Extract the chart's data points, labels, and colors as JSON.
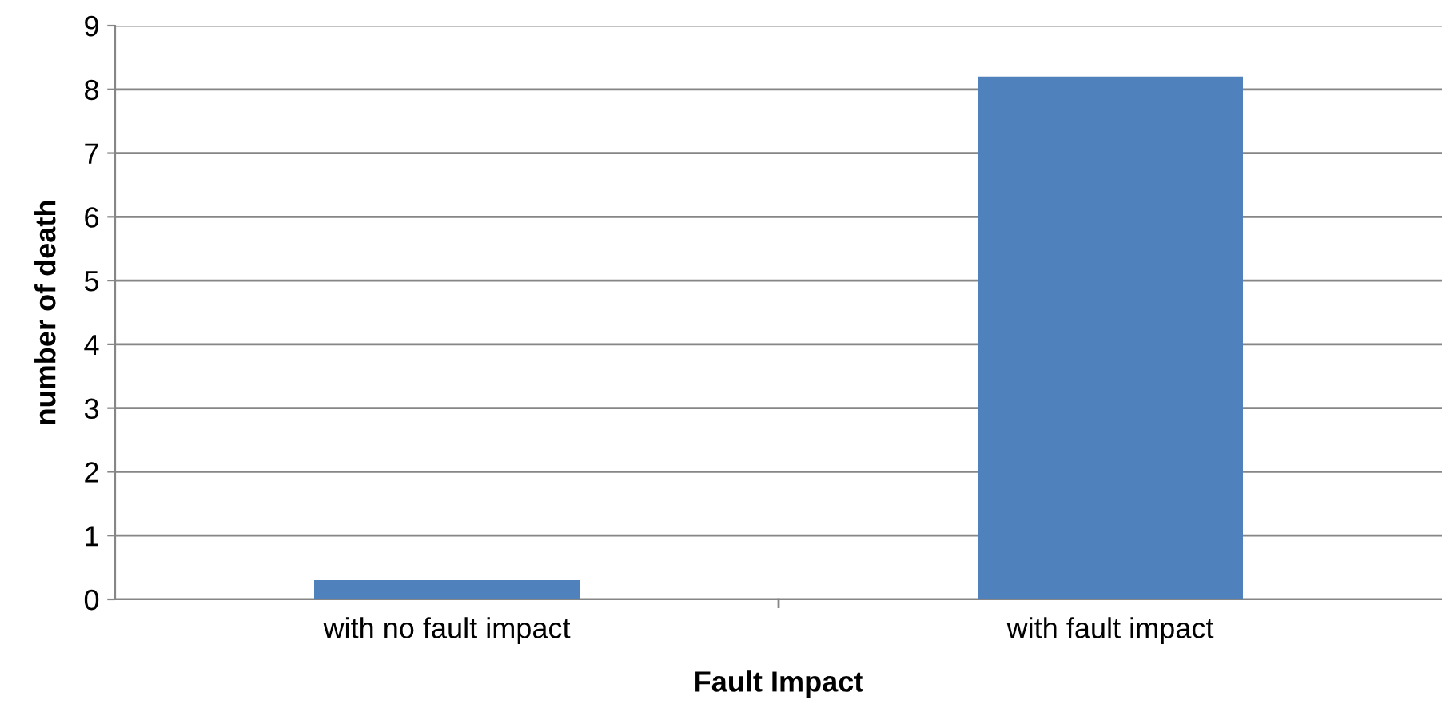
{
  "chart_data": {
    "type": "bar",
    "xlabel": "Fault Impact",
    "ylabel": "number of death",
    "categories": [
      "with no fault impact",
      "with fault impact"
    ],
    "values": [
      0.3,
      8.2
    ],
    "color": "#4f81bd",
    "ylim": [
      0,
      9
    ],
    "yticks": [
      0,
      1,
      2,
      3,
      4,
      5,
      6,
      7,
      8,
      9
    ],
    "grid": "y",
    "legend": false
  }
}
